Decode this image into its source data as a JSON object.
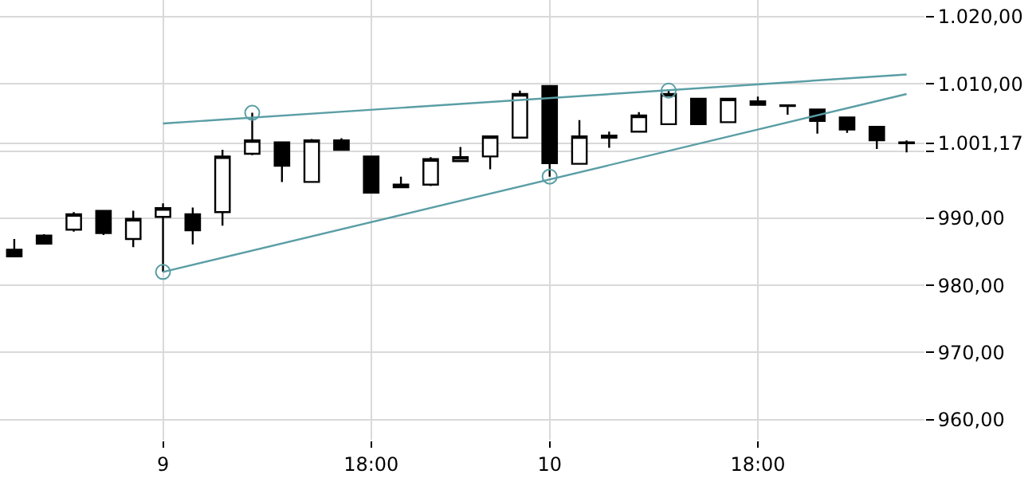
{
  "chart_data": {
    "type": "candlestick",
    "categories": [
      null,
      null,
      null,
      null,
      null,
      "9",
      null,
      null,
      null,
      null,
      null,
      null,
      "18:00",
      null,
      null,
      null,
      null,
      null,
      "10",
      null,
      null,
      null,
      null,
      null,
      null,
      "18:00",
      null,
      null,
      null,
      null,
      null
    ],
    "ohlc": [
      [
        985.3,
        986.9,
        984.3,
        984.3
      ],
      [
        987.4,
        987.6,
        986.2,
        986.2
      ],
      [
        988.3,
        990.9,
        988.0,
        990.6
      ],
      [
        991.1,
        991.1,
        987.5,
        987.8
      ],
      [
        986.9,
        991.1,
        985.7,
        989.9
      ],
      [
        990.2,
        992.2,
        982.0,
        991.5
      ],
      [
        990.6,
        991.6,
        986.1,
        988.2
      ],
      [
        990.9,
        1000.2,
        988.9,
        999.2
      ],
      [
        999.6,
        1005.7,
        999.4,
        1001.6
      ],
      [
        1001.3,
        1001.3,
        995.4,
        997.8
      ],
      [
        995.4,
        1001.8,
        995.4,
        1001.6
      ],
      [
        1001.6,
        1001.9,
        1000.2,
        1000.2
      ],
      [
        999.2,
        999.2,
        993.8,
        993.8
      ],
      [
        994.6,
        996.2,
        994.6,
        995.0
      ],
      [
        995.0,
        999.1,
        994.8,
        998.8
      ],
      [
        998.5,
        1000.6,
        998.5,
        999.1
      ],
      [
        999.2,
        1002.2,
        997.3,
        1002.2
      ],
      [
        1002.0,
        1009.0,
        1002.0,
        1008.5
      ],
      [
        1009.7,
        1009.7,
        996.2,
        998.2
      ],
      [
        998.1,
        1004.6,
        998.1,
        1002.2
      ],
      [
        1002.3,
        1002.9,
        1000.5,
        1002.0
      ],
      [
        1002.9,
        1005.8,
        1002.9,
        1005.3
      ],
      [
        1004.0,
        1009.0,
        1004.0,
        1008.5
      ],
      [
        1007.8,
        1007.8,
        1004.0,
        1004.0
      ],
      [
        1004.3,
        1007.8,
        1004.3,
        1007.8
      ],
      [
        1006.9,
        1008.1,
        1006.9,
        1007.4
      ],
      [
        1006.8,
        1006.9,
        1005.4,
        1006.7
      ],
      [
        1006.2,
        1006.2,
        1002.6,
        1004.5
      ],
      [
        1005.0,
        1005.0,
        1002.7,
        1003.2
      ],
      [
        1003.6,
        1003.6,
        1000.3,
        1001.6
      ],
      [
        1001.3,
        1001.6,
        999.8,
        1001.17
      ]
    ],
    "series": [
      {
        "type": "line",
        "color": "#5a9ea5",
        "marker": "none",
        "values": [
          null,
          null,
          null,
          null,
          null,
          1004.1,
          null,
          null,
          null,
          null,
          null,
          null,
          null,
          null,
          null,
          null,
          null,
          null,
          null,
          null,
          null,
          null,
          null,
          null,
          null,
          null,
          null,
          null,
          null,
          null,
          1011.4
        ]
      },
      {
        "type": "line",
        "color": "#5a9ea5",
        "marker": "none",
        "values": [
          null,
          null,
          null,
          null,
          null,
          982.0,
          null,
          null,
          null,
          null,
          null,
          null,
          null,
          null,
          null,
          null,
          null,
          null,
          null,
          null,
          null,
          null,
          null,
          null,
          null,
          null,
          null,
          null,
          null,
          null,
          1008.5
        ]
      },
      {
        "type": "scatter",
        "color": "#5a9ea5",
        "marker": "circle",
        "values": [
          null,
          null,
          null,
          null,
          null,
          982.0,
          null,
          null,
          1005.7,
          null,
          null,
          null,
          null,
          null,
          null,
          null,
          null,
          null,
          996.2,
          null,
          null,
          null,
          1009.0,
          null,
          null,
          null,
          null,
          null,
          null,
          null,
          null
        ]
      }
    ],
    "ylim": [
      957,
      1022.5
    ],
    "yticks": [
      {
        "value": 960,
        "label": "960,00"
      },
      {
        "value": 970,
        "label": "970,00"
      },
      {
        "value": 980,
        "label": "980,00"
      },
      {
        "value": 990,
        "label": "990,00"
      },
      {
        "value": 1000,
        "label": null
      },
      {
        "value": 1001.17,
        "label": "1.001,17"
      },
      {
        "value": 1010,
        "label": "1.010,00"
      },
      {
        "value": 1020,
        "label": "1.020,00"
      }
    ],
    "grid": true
  }
}
